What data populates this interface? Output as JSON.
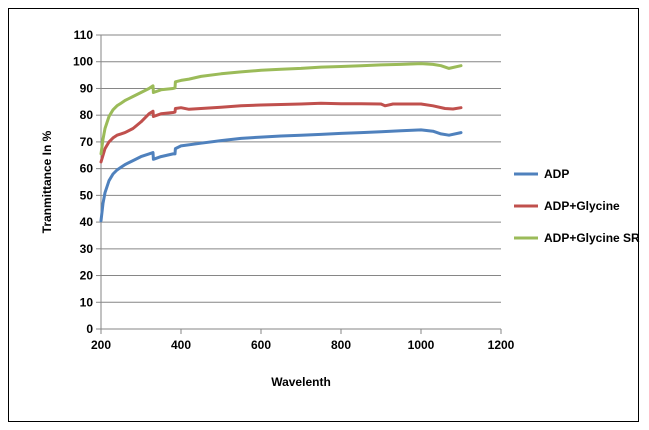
{
  "chart_data": {
    "type": "line",
    "title": "",
    "xlabel": "Wavelenth",
    "ylabel": "Tranmittance In %",
    "xlim": [
      200,
      1200
    ],
    "ylim": [
      0,
      110
    ],
    "xticks": [
      200,
      400,
      600,
      800,
      1000,
      1200
    ],
    "yticks": [
      0,
      10,
      20,
      30,
      40,
      50,
      60,
      70,
      80,
      90,
      100,
      110
    ],
    "grid": "horizontal",
    "legend_position": "right",
    "series": [
      {
        "name": "ADP",
        "color": "#4f81bd",
        "x": [
          200,
          205,
          210,
          220,
          230,
          240,
          250,
          260,
          280,
          300,
          320,
          330,
          331,
          350,
          380,
          385,
          386,
          400,
          450,
          500,
          550,
          600,
          650,
          700,
          750,
          800,
          850,
          900,
          950,
          1000,
          1030,
          1050,
          1070,
          1100
        ],
        "y": [
          40.5,
          47,
          51,
          55.5,
          58,
          59.5,
          60.5,
          61.5,
          63,
          64.5,
          65.5,
          66,
          63.5,
          64.5,
          65.5,
          65.5,
          67.5,
          68.5,
          69.5,
          70.5,
          71.3,
          71.8,
          72.2,
          72.5,
          72.8,
          73.2,
          73.5,
          73.8,
          74.2,
          74.5,
          74,
          73,
          72.5,
          73.5
        ]
      },
      {
        "name": "ADP+Glycine",
        "color": "#c0504d",
        "x": [
          200,
          205,
          210,
          220,
          230,
          240,
          250,
          260,
          280,
          300,
          320,
          325,
          330,
          331,
          350,
          380,
          385,
          386,
          400,
          420,
          450,
          500,
          550,
          600,
          650,
          700,
          750,
          800,
          850,
          900,
          910,
          930,
          1000,
          1030,
          1060,
          1080,
          1100
        ],
        "y": [
          62.5,
          65,
          67.5,
          70,
          71.5,
          72.5,
          73,
          73.5,
          75,
          77.5,
          80.5,
          81,
          81.5,
          79.5,
          80.5,
          81,
          81.2,
          82.5,
          82.8,
          82.2,
          82.5,
          83,
          83.5,
          83.8,
          84,
          84.2,
          84.5,
          84.3,
          84.3,
          84.2,
          83.5,
          84.2,
          84.2,
          83.5,
          82.5,
          82.3,
          82.8
        ]
      },
      {
        "name": "ADP+Glycine SR",
        "color": "#9bbb59",
        "x": [
          200,
          205,
          210,
          220,
          230,
          240,
          250,
          260,
          280,
          300,
          320,
          325,
          330,
          331,
          350,
          380,
          385,
          386,
          400,
          420,
          450,
          500,
          550,
          600,
          650,
          700,
          750,
          800,
          850,
          900,
          950,
          1000,
          1030,
          1050,
          1070,
          1100
        ],
        "y": [
          65.5,
          71,
          75,
          79.5,
          82,
          83.5,
          84.5,
          85.5,
          87,
          88.5,
          90,
          90.5,
          91,
          88.5,
          89.5,
          90,
          90.2,
          92.5,
          93,
          93.5,
          94.5,
          95.5,
          96.2,
          96.8,
          97.2,
          97.5,
          98,
          98.2,
          98.5,
          98.8,
          99,
          99.3,
          99,
          98.5,
          97.5,
          98.5
        ]
      }
    ]
  }
}
